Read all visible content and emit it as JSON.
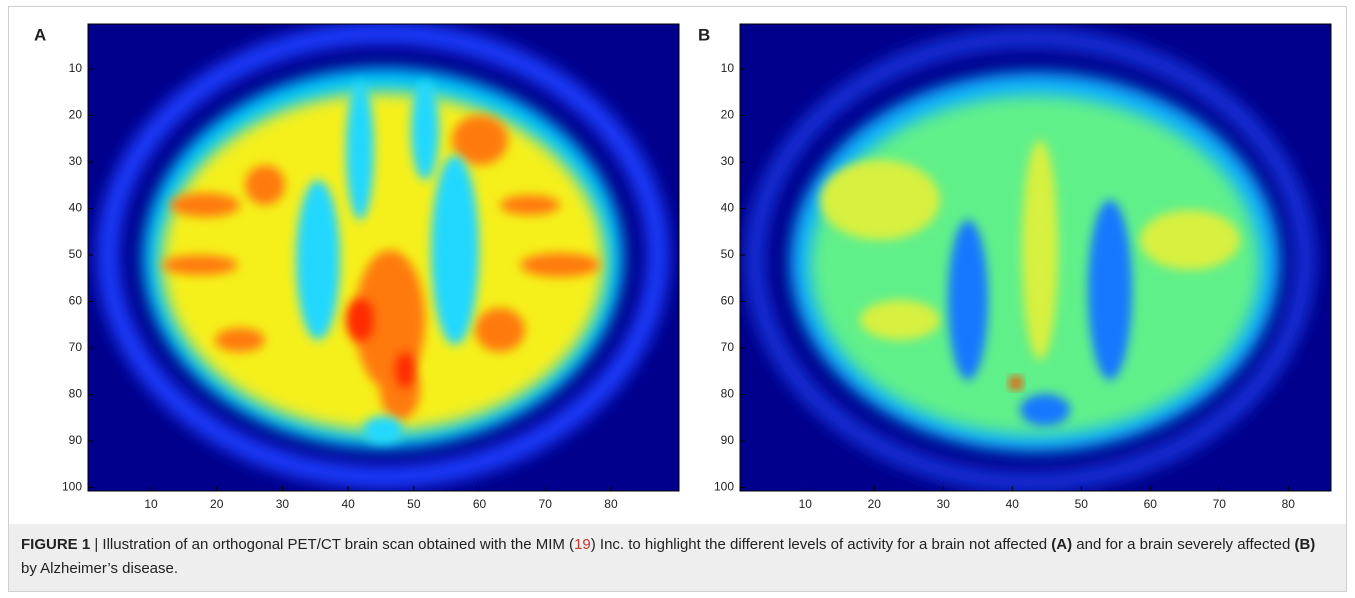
{
  "panels": [
    {
      "label": "A",
      "yticks": [
        10,
        20,
        30,
        40,
        50,
        60,
        70,
        80,
        90,
        100
      ],
      "xticks": [
        10,
        20,
        30,
        40,
        50,
        60,
        70,
        80
      ]
    },
    {
      "label": "B",
      "yticks": [
        10,
        20,
        30,
        40,
        50,
        60,
        70,
        80,
        90,
        100
      ],
      "xticks": [
        10,
        20,
        30,
        40,
        50,
        60,
        70,
        80
      ]
    }
  ],
  "caption": [
    {
      "text": "FIGURE 1",
      "style": "bold"
    },
    {
      "text": " | Illustration of an orthogonal PET/CT brain scan obtained with the MIM ("
    },
    {
      "text": "19",
      "style": "link"
    },
    {
      "text": ") Inc. to highlight the different levels of activity for a brain not affected "
    },
    {
      "text": "(A)",
      "style": "bold"
    },
    {
      "text": " and for a brain severely affected "
    },
    {
      "text": "(B)",
      "style": "bold"
    },
    {
      "text": " by Alzheimer’s disease."
    }
  ]
}
